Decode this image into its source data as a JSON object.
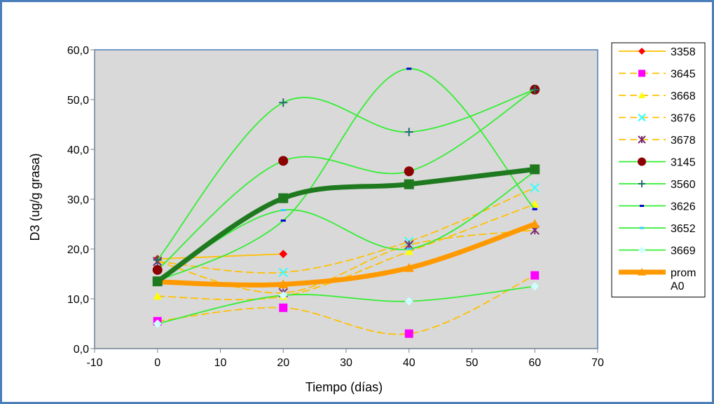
{
  "chart_data": {
    "type": "line",
    "title": "",
    "xlabel": "Tiempo (días)",
    "ylabel": "D3 (ug/g grasa)",
    "xlim": [
      -10,
      70
    ],
    "ylim": [
      0,
      60
    ],
    "x_ticks": [
      -10,
      0,
      10,
      20,
      30,
      40,
      50,
      60,
      70
    ],
    "y_ticks": [
      0,
      10,
      20,
      30,
      40,
      50,
      60
    ],
    "y_tick_labels": [
      "0,0",
      "10,0",
      "20,0",
      "30,0",
      "40,0",
      "50,0",
      "60,0"
    ],
    "plot_background": "#d9d9d9",
    "grid": false,
    "legend_position": "right",
    "series": [
      {
        "name": "3358",
        "x": [
          0,
          20
        ],
        "y": [
          18.0,
          19.0
        ],
        "color": "#ffc000",
        "dash": "solid",
        "marker": "diamond",
        "marker_color": "#ff0000"
      },
      {
        "name": "3645",
        "x": [
          0,
          20,
          40,
          60
        ],
        "y": [
          5.5,
          8.2,
          3.0,
          14.7
        ],
        "color": "#ffc000",
        "dash": "dashed",
        "marker": "square",
        "marker_color": "#ff00ff"
      },
      {
        "name": "3668",
        "x": [
          0,
          20,
          40,
          60
        ],
        "y": [
          10.5,
          10.5,
          19.5,
          29.0
        ],
        "color": "#ffc000",
        "dash": "dashed",
        "marker": "triangle",
        "marker_color": "#ffff00"
      },
      {
        "name": "3676",
        "x": [
          0,
          20,
          40,
          60
        ],
        "y": [
          17.5,
          15.3,
          21.5,
          32.3
        ],
        "color": "#ffc000",
        "dash": "dashed",
        "marker": "x",
        "marker_color": "#33ffff"
      },
      {
        "name": "3678",
        "x": [
          0,
          20,
          40,
          60
        ],
        "y": [
          17.5,
          11.2,
          20.8,
          23.8
        ],
        "color": "#ffc000",
        "dash": "dashed",
        "marker": "star",
        "marker_color": "#7b2a6e"
      },
      {
        "name": "3145",
        "x": [
          0,
          20,
          40,
          60
        ],
        "y": [
          15.8,
          37.7,
          35.6,
          52.0
        ],
        "color": "#33ee33",
        "dash": "solid",
        "marker": "circle",
        "marker_color": "#8b0000"
      },
      {
        "name": "3560",
        "x": [
          0,
          20,
          40,
          60
        ],
        "y": [
          17.8,
          49.4,
          43.5,
          52.0
        ],
        "color": "#33ee33",
        "dash": "solid",
        "marker": "plus",
        "marker_color": "#1f6b6b"
      },
      {
        "name": "3626",
        "x": [
          0,
          20,
          40,
          60
        ],
        "y": [
          13.5,
          25.7,
          56.2,
          28.0
        ],
        "color": "#33ee33",
        "dash": "solid",
        "marker": "dash",
        "marker_color": "#0000cc"
      },
      {
        "name": "3652",
        "x": [
          0,
          20,
          40,
          60
        ],
        "y": [
          13.5,
          27.8,
          20.0,
          35.5
        ],
        "color": "#33ee33",
        "dash": "solid",
        "marker": "dash",
        "marker_color": "#33ccff"
      },
      {
        "name": "3669",
        "x": [
          0,
          20,
          40,
          60
        ],
        "y": [
          5.0,
          10.7,
          9.5,
          12.5
        ],
        "color": "#33ee33",
        "dash": "solid",
        "marker": "diamond",
        "marker_color": "#ccffff"
      },
      {
        "name": "prom A0",
        "x": [
          0,
          20,
          40,
          60
        ],
        "y": [
          13.4,
          12.9,
          16.2,
          25.0
        ],
        "color": "#ff9900",
        "dash": "solid",
        "marker": "triangle",
        "marker_color": "#ff9900",
        "thick": true,
        "in_legend": true
      },
      {
        "name": "",
        "x": [
          0,
          20,
          40,
          60
        ],
        "y": [
          13.5,
          30.2,
          33.0,
          36.0
        ],
        "color": "#1f7a1f",
        "dash": "solid",
        "marker": "square",
        "marker_color": "#1f7a1f",
        "thick": true,
        "in_legend": false
      }
    ]
  }
}
